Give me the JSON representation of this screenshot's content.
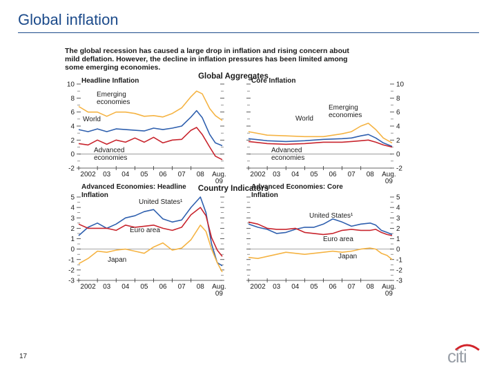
{
  "slide": {
    "title": "Global inflation",
    "page_number": "17",
    "logo_text": "citi"
  },
  "figure": {
    "caption_lines": [
      "The global recession has caused a large drop in inflation and rising concern about",
      "mild deflation. However, the decline in inflation pressures has been limited among",
      "some emerging economies."
    ],
    "section_titles": [
      "Global Aggregates",
      "Country Indicators"
    ]
  },
  "chart_data": [
    {
      "type": "line",
      "title": "Headline Inflation",
      "x_tick_labels": [
        "2002",
        "03",
        "04",
        "05",
        "06",
        "07",
        "08",
        "Aug.",
        "09"
      ],
      "ylim": [
        -2,
        10
      ],
      "y_ticks": [
        -2,
        0,
        2,
        4,
        6,
        8,
        10
      ],
      "x_range": [
        2002,
        2009.67
      ],
      "series": [
        {
          "name": "Emerging economies",
          "color": "#f5b342",
          "x": [
            2002.0,
            2002.5,
            2003.0,
            2003.5,
            2004.0,
            2004.5,
            2005.0,
            2005.5,
            2006.0,
            2006.5,
            2007.0,
            2007.5,
            2008.0,
            2008.3,
            2008.6,
            2009.0,
            2009.3,
            2009.67
          ],
          "values": [
            6.8,
            6.0,
            6.0,
            5.4,
            6.0,
            6.0,
            5.8,
            5.4,
            5.5,
            5.3,
            5.8,
            6.6,
            8.2,
            9.0,
            8.6,
            6.5,
            5.5,
            4.8
          ]
        },
        {
          "name": "World",
          "color": "#2e5fae",
          "x": [
            2002.0,
            2002.5,
            2003.0,
            2003.5,
            2004.0,
            2004.5,
            2005.0,
            2005.5,
            2006.0,
            2006.5,
            2007.0,
            2007.5,
            2008.0,
            2008.3,
            2008.6,
            2009.0,
            2009.3,
            2009.67
          ],
          "values": [
            3.5,
            3.2,
            3.6,
            3.2,
            3.6,
            3.5,
            3.4,
            3.3,
            3.7,
            3.5,
            3.7,
            4.0,
            5.3,
            6.2,
            5.2,
            2.8,
            1.6,
            1.2
          ]
        },
        {
          "name": "Advanced economies",
          "color": "#c8232c",
          "x": [
            2002.0,
            2002.5,
            2003.0,
            2003.5,
            2004.0,
            2004.5,
            2005.0,
            2005.5,
            2006.0,
            2006.5,
            2007.0,
            2007.5,
            2008.0,
            2008.3,
            2008.6,
            2009.0,
            2009.3,
            2009.67
          ],
          "values": [
            1.5,
            1.3,
            2.0,
            1.4,
            2.0,
            1.7,
            2.3,
            1.7,
            2.4,
            1.6,
            2.0,
            2.1,
            3.4,
            3.8,
            2.8,
            1.0,
            -0.3,
            -0.8
          ]
        }
      ],
      "annotations": [
        "Emerging economies",
        "World",
        "Advanced economies"
      ]
    },
    {
      "type": "line",
      "title": "Core Inflation",
      "x_tick_labels": [
        "2002",
        "03",
        "04",
        "05",
        "06",
        "07",
        "08",
        "Aug.",
        "09"
      ],
      "ylim": [
        -2,
        10
      ],
      "y_ticks": [
        -2,
        0,
        2,
        4,
        6,
        8,
        10
      ],
      "x_range": [
        2002,
        2009.67
      ],
      "series": [
        {
          "name": "Emerging economies",
          "color": "#f5b342",
          "x": [
            2002.0,
            2003.0,
            2004.0,
            2005.0,
            2006.0,
            2007.0,
            2007.5,
            2008.0,
            2008.4,
            2008.8,
            2009.2,
            2009.67
          ],
          "values": [
            3.2,
            2.7,
            2.6,
            2.5,
            2.5,
            2.9,
            3.2,
            4.0,
            4.4,
            3.5,
            2.3,
            1.6
          ]
        },
        {
          "name": "World",
          "color": "#2e5fae",
          "x": [
            2002.0,
            2003.0,
            2004.0,
            2005.0,
            2006.0,
            2007.0,
            2007.5,
            2008.0,
            2008.4,
            2008.8,
            2009.2,
            2009.67
          ],
          "values": [
            2.2,
            1.9,
            1.8,
            1.9,
            2.1,
            2.2,
            2.3,
            2.6,
            2.8,
            2.3,
            1.6,
            1.1
          ]
        },
        {
          "name": "Advanced economies",
          "color": "#c8232c",
          "x": [
            2002.0,
            2003.0,
            2004.0,
            2005.0,
            2006.0,
            2007.0,
            2007.5,
            2008.0,
            2008.4,
            2008.8,
            2009.2,
            2009.67
          ],
          "values": [
            1.8,
            1.5,
            1.4,
            1.5,
            1.7,
            1.7,
            1.8,
            1.9,
            2.0,
            1.7,
            1.3,
            1.0
          ]
        }
      ],
      "annotations": [
        "Emerging economies",
        "World",
        "Advanced economies"
      ]
    },
    {
      "type": "line",
      "title": "Advanced Economies: Headline Inflation",
      "x_tick_labels": [
        "2002",
        "03",
        "04",
        "05",
        "06",
        "07",
        "08",
        "Aug.",
        "09"
      ],
      "ylim": [
        -3,
        5
      ],
      "y_ticks": [
        -3,
        -2,
        -1,
        0,
        1,
        2,
        3,
        4,
        5
      ],
      "x_range": [
        2002,
        2009.67
      ],
      "series": [
        {
          "name": "United States¹",
          "color": "#2e5fae",
          "x": [
            2002.0,
            2002.5,
            2003.0,
            2003.5,
            2004.0,
            2004.5,
            2005.0,
            2005.5,
            2006.0,
            2006.5,
            2007.0,
            2007.5,
            2008.0,
            2008.5,
            2008.8,
            2009.1,
            2009.4,
            2009.67
          ],
          "values": [
            1.3,
            2.1,
            2.5,
            2.0,
            2.4,
            3.0,
            3.2,
            3.6,
            3.8,
            2.9,
            2.6,
            2.8,
            4.0,
            5.0,
            3.5,
            0.5,
            -1.3,
            -1.6
          ]
        },
        {
          "name": "Euro area",
          "color": "#c8232c",
          "x": [
            2002.0,
            2002.5,
            2003.0,
            2003.5,
            2004.0,
            2004.5,
            2005.0,
            2005.5,
            2006.0,
            2006.5,
            2007.0,
            2007.5,
            2008.0,
            2008.5,
            2008.8,
            2009.1,
            2009.4,
            2009.67
          ],
          "values": [
            2.4,
            2.0,
            2.0,
            2.0,
            1.8,
            2.3,
            2.1,
            2.2,
            2.3,
            2.0,
            1.8,
            2.1,
            3.3,
            4.0,
            3.2,
            1.1,
            -0.1,
            -0.7
          ]
        },
        {
          "name": "Japan",
          "color": "#f5b342",
          "x": [
            2002.0,
            2002.5,
            2003.0,
            2003.5,
            2004.0,
            2004.5,
            2005.0,
            2005.5,
            2006.0,
            2006.5,
            2007.0,
            2007.5,
            2008.0,
            2008.5,
            2008.8,
            2009.1,
            2009.4,
            2009.67
          ],
          "values": [
            -1.4,
            -0.9,
            -0.2,
            -0.3,
            -0.1,
            0.0,
            -0.2,
            -0.4,
            0.2,
            0.6,
            -0.1,
            0.1,
            0.9,
            2.3,
            1.7,
            0.0,
            -1.3,
            -2.2
          ]
        }
      ],
      "annotations": [
        "United States¹",
        "Euro area",
        "Japan"
      ]
    },
    {
      "type": "line",
      "title": "Advanced Economies: Core Inflation",
      "x_tick_labels": [
        "2002",
        "03",
        "04",
        "05",
        "06",
        "07",
        "08",
        "Aug.",
        "09"
      ],
      "ylim": [
        -3,
        5
      ],
      "y_ticks": [
        -3,
        -2,
        -1,
        0,
        1,
        2,
        3,
        4,
        5
      ],
      "x_range": [
        2002,
        2009.67
      ],
      "series": [
        {
          "name": "United States¹",
          "color": "#2e5fae",
          "x": [
            2002.0,
            2002.5,
            2003.0,
            2003.5,
            2004.0,
            2004.5,
            2005.0,
            2005.5,
            2006.0,
            2006.5,
            2007.0,
            2007.5,
            2008.0,
            2008.5,
            2008.8,
            2009.1,
            2009.4,
            2009.67
          ],
          "values": [
            2.4,
            2.1,
            1.9,
            1.5,
            1.6,
            1.9,
            2.1,
            2.1,
            2.4,
            2.9,
            2.6,
            2.2,
            2.4,
            2.5,
            2.3,
            1.8,
            1.6,
            1.4
          ]
        },
        {
          "name": "Euro area",
          "color": "#c8232c",
          "x": [
            2002.0,
            2002.5,
            2003.0,
            2003.5,
            2004.0,
            2004.5,
            2005.0,
            2005.5,
            2006.0,
            2006.5,
            2007.0,
            2007.5,
            2008.0,
            2008.5,
            2008.8,
            2009.1,
            2009.4,
            2009.67
          ],
          "values": [
            2.6,
            2.4,
            2.0,
            1.9,
            1.9,
            2.0,
            1.6,
            1.5,
            1.4,
            1.5,
            1.8,
            1.9,
            1.8,
            1.8,
            1.9,
            1.6,
            1.4,
            1.3
          ]
        },
        {
          "name": "Japan",
          "color": "#f5b342",
          "x": [
            2002.0,
            2002.5,
            2003.0,
            2003.5,
            2004.0,
            2004.5,
            2005.0,
            2005.5,
            2006.0,
            2006.5,
            2007.0,
            2007.5,
            2008.0,
            2008.5,
            2008.8,
            2009.1,
            2009.4,
            2009.67
          ],
          "values": [
            -0.8,
            -0.9,
            -0.7,
            -0.5,
            -0.3,
            -0.4,
            -0.5,
            -0.4,
            -0.3,
            -0.2,
            -0.3,
            -0.2,
            0.0,
            0.1,
            0.0,
            -0.4,
            -0.6,
            -1.0
          ]
        }
      ],
      "annotations": [
        "United States¹",
        "Euro area",
        "Japan"
      ]
    }
  ]
}
